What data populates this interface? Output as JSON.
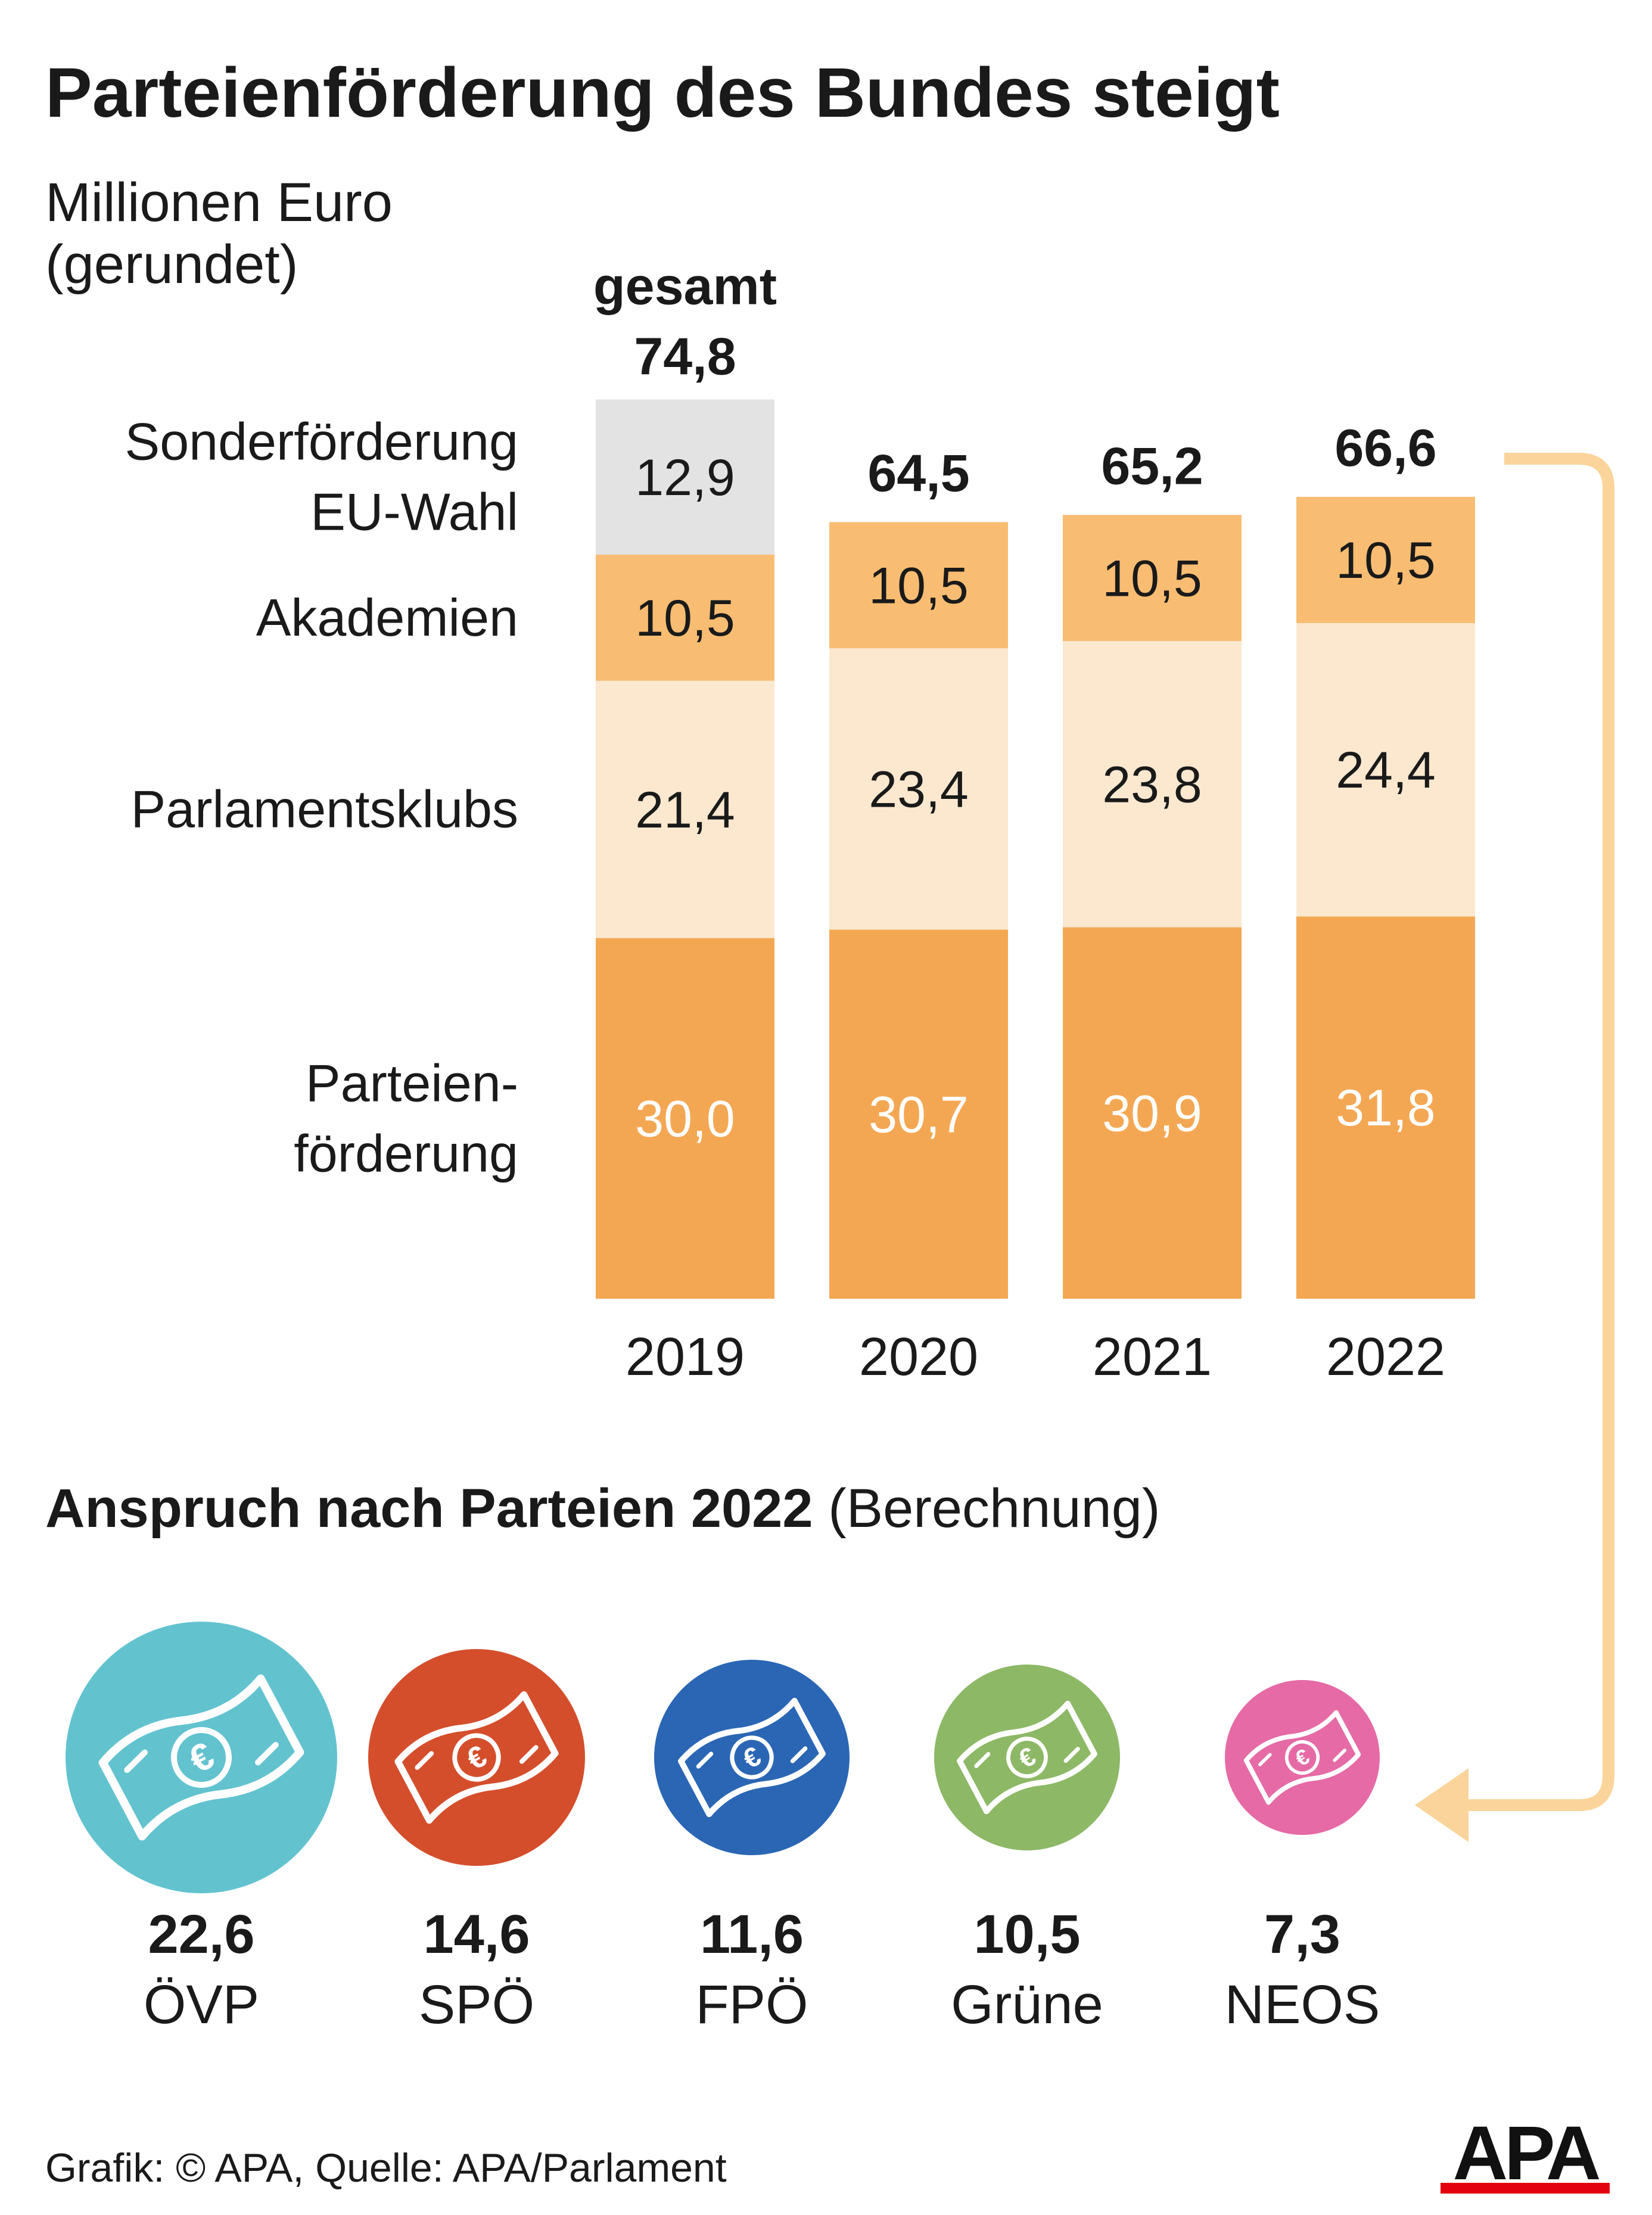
{
  "title": "Parteienförderung des Bundes steigt",
  "subtitle": [
    "Millionen Euro",
    "(gerundet)"
  ],
  "chart_data": {
    "type": "bar",
    "stacked": true,
    "categories": [
      "2019",
      "2020",
      "2021",
      "2022"
    ],
    "series": [
      {
        "name": "Parteien-förderung",
        "label_lines": [
          "Parteien-",
          "förderung"
        ],
        "values": [
          30.0,
          30.7,
          30.9,
          31.8
        ],
        "display": [
          "30,0",
          "30,7",
          "30,9",
          "31,8"
        ],
        "color": "#f4a753",
        "text_color": "#ffffff"
      },
      {
        "name": "Parlamentsklubs",
        "label_lines": [
          "Parlamentsklubs"
        ],
        "values": [
          21.4,
          23.4,
          23.8,
          24.4
        ],
        "display": [
          "21,4",
          "23,4",
          "23,8",
          "24,4"
        ],
        "color": "#fbe8cf",
        "text_color": "#1a1a1a"
      },
      {
        "name": "Akademien",
        "label_lines": [
          "Akademien"
        ],
        "values": [
          10.5,
          10.5,
          10.5,
          10.5
        ],
        "display": [
          "10,5",
          "10,5",
          "10,5",
          "10,5"
        ],
        "color": "#f8bd72",
        "text_color": "#1a1a1a"
      },
      {
        "name": "Sonderförderung EU-Wahl",
        "label_lines": [
          "Sonderförderung",
          "EU-Wahl"
        ],
        "values": [
          12.9,
          0,
          0,
          0
        ],
        "display": [
          "12,9",
          "",
          "",
          ""
        ],
        "color": "#e3e3e3",
        "text_color": "#1a1a1a"
      }
    ],
    "totals": [
      74.8,
      64.5,
      65.2,
      66.6
    ],
    "totals_display": [
      "74,8",
      "64,5",
      "65,2",
      "66,6"
    ],
    "total_prefix": "gesamt",
    "ylim": [
      0,
      75
    ],
    "grid": false,
    "legend": "left"
  },
  "parties_title": "Anspruch nach Parteien 2022",
  "parties_subtitle": "(Berechnung)",
  "parties": [
    {
      "name": "ÖVP",
      "value": 22.6,
      "display": "22,6",
      "color": "#62c3cf"
    },
    {
      "name": "SPÖ",
      "value": 14.6,
      "display": "14,6",
      "color": "#d44e2c"
    },
    {
      "name": "FPÖ",
      "value": 11.6,
      "display": "11,6",
      "color": "#2a66b4"
    },
    {
      "name": "Grüne",
      "value": 10.5,
      "display": "10,5",
      "color": "#8db866"
    },
    {
      "name": "NEOS",
      "value": 7.3,
      "display": "7,3",
      "color": "#e56aa5"
    }
  ],
  "arrow_color": "#fad49a",
  "source": "Grafik: © APA, Quelle: APA/Parlament",
  "logo": "APA"
}
